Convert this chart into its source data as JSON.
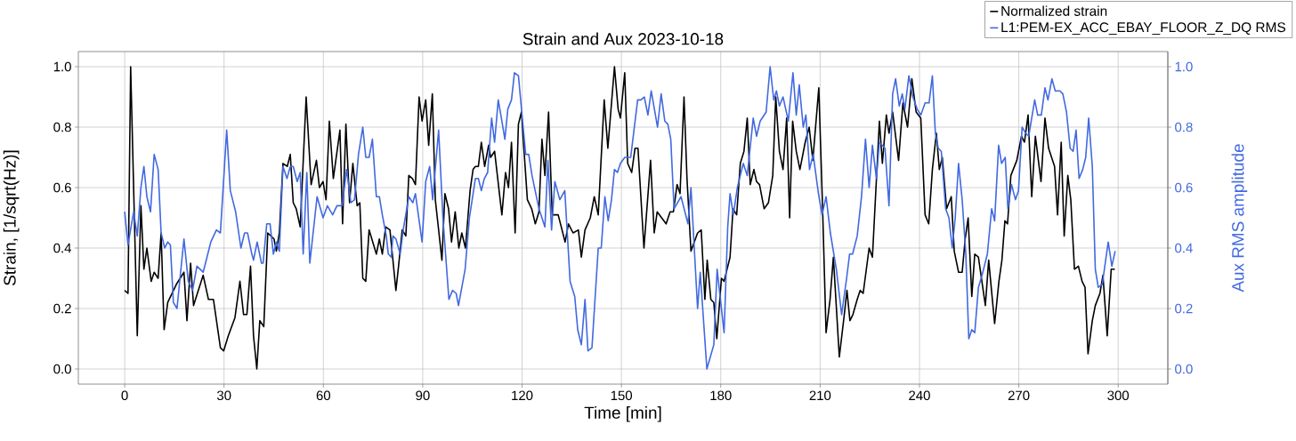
{
  "chart_data": {
    "type": "line",
    "title": "Strain and Aux 2023-10-18",
    "xlabel": "Time [min]",
    "ylabel": "Strain, [1/sqrt(Hz)]",
    "y2label": "Aux RMS amplitude",
    "xlim": [
      -14,
      315
    ],
    "xticks": [
      0,
      30,
      60,
      90,
      120,
      150,
      180,
      210,
      240,
      270,
      300
    ],
    "ylim": [
      -0.05,
      1.05
    ],
    "yticks": [
      {
        "value": 0,
        "label": "0.0"
      },
      {
        "value": 0.2,
        "label": "0.2"
      },
      {
        "value": 0.4,
        "label": "0.4"
      },
      {
        "value": 0.6,
        "label": "0.6"
      },
      {
        "value": 0.8,
        "label": "0.8"
      },
      {
        "value": 1,
        "label": "1.0"
      }
    ],
    "y2lim": [
      -0.05,
      1.05
    ],
    "y2ticks": [
      {
        "value": 0,
        "label": "0.0"
      },
      {
        "value": 0.2,
        "label": "0.2"
      },
      {
        "value": 0.4,
        "label": "0.4"
      },
      {
        "value": 0.6,
        "label": "0.6"
      },
      {
        "value": 0.8,
        "label": "0.8"
      },
      {
        "value": 1,
        "label": "1.0"
      }
    ],
    "grid": true,
    "legend": "top right",
    "series": [
      {
        "name": "Normalized strain",
        "color": "#000000",
        "x": [
          0,
          1,
          1.8,
          3.8,
          4.9,
          5.8,
          6.7,
          8.0,
          8.9,
          10.1,
          11.0,
          11.9,
          13.0,
          15.6,
          17.9,
          18.8,
          19.9,
          20.8,
          23.7,
          25.3,
          26.8,
          28.9,
          29.9,
          31.3,
          33.3,
          34.8,
          35.9,
          36.9,
          38.0,
          38.9,
          39.9,
          40.8,
          42.0,
          43.2,
          45.1,
          45.8,
          46.7,
          47.8,
          49.1,
          50.0,
          50.9,
          51.8,
          53.0,
          54.8,
          56.3,
          57.9,
          58.8,
          59.9,
          60.8,
          61.8,
          63.0,
          65.0,
          65.8,
          66.8,
          67.9,
          68.9,
          70.2,
          71.0,
          71.9,
          72.8,
          73.8,
          76.0,
          76.9,
          77.8,
          78.8,
          80.1,
          81.9,
          82.7,
          83.8,
          84.9,
          85.8,
          86.9,
          87.8,
          88.9,
          89.8,
          90.9,
          91.8,
          92.9,
          93.8,
          95.8,
          96.7,
          97.8,
          98.7,
          99.8,
          100.9,
          101.8,
          102.9,
          104.3,
          105.2,
          105.9,
          106.8,
          107.7,
          108.7,
          109.9,
          110.5,
          111.7,
          113.9,
          115.0,
          115.9,
          116.8,
          117.9,
          118.9,
          119.8,
          121.6,
          122.9,
          124.0,
          125.1,
          126.0,
          126.9,
          128.0,
          129.1,
          130.9,
          133.0,
          134.0,
          135.4,
          137.0,
          137.9,
          139.0,
          140.6,
          141.8,
          143.0,
          144.8,
          145.9,
          147.9,
          149.0,
          149.7,
          151.0,
          151.9,
          153.1,
          154.1,
          155.0,
          156.8,
          158.8,
          159.9,
          160.8,
          163.5,
          164.7,
          165.7,
          166.8,
          167.7,
          168.9,
          169.8,
          171.0,
          173.0,
          174.1,
          175.2,
          175.9,
          177.0,
          177.9,
          178.8,
          180.2,
          181.0,
          182.8,
          183.7,
          184.8,
          185.9,
          187.0,
          188.0,
          188.9,
          190.0,
          190.8,
          191.7,
          193.1,
          194.4,
          195.7,
          196.6,
          197.7,
          198.8,
          199.9,
          200.8,
          201.7,
          202.8,
          203.9,
          205.5,
          206.7,
          207.8,
          209.6,
          210.7,
          211.8,
          213.0,
          214.0,
          215.8,
          217.2,
          218.1,
          219.0,
          219.9,
          221.2,
          222.1,
          223.0,
          224.8,
          225.8,
          227.9,
          228.8,
          230.0,
          230.8,
          231.9,
          233.7,
          235.0,
          236.4,
          237.7,
          239.0,
          240.4,
          241.7,
          242.8,
          243.9,
          245.1,
          246.0,
          246.9,
          248.2,
          249.6,
          250.5,
          251.8,
          252.9,
          253.8,
          254.7,
          255.8,
          256.7,
          257.8,
          259.9,
          260.9,
          262.7,
          264.0,
          264.9,
          265.8,
          266.6,
          267.6,
          269.4,
          270.8,
          271.7,
          272.8,
          273.9,
          275.0,
          276.7,
          277.9,
          279.0,
          280.8,
          281.7,
          282.8,
          283.7,
          284.8,
          285.7,
          286.8,
          288.0,
          289.1,
          290.0,
          290.9,
          292.2,
          293.1,
          294.5,
          295.4,
          296.7,
          297.9,
          299.0
        ],
        "values": [
          0.26,
          0.25,
          1.0,
          0.11,
          0.54,
          0.33,
          0.4,
          0.29,
          0.32,
          0.3,
          0.45,
          0.13,
          0.22,
          0.28,
          0.32,
          0.16,
          0.35,
          0.21,
          0.31,
          0.23,
          0.23,
          0.07,
          0.06,
          0.11,
          0.17,
          0.29,
          0.18,
          0.18,
          0.34,
          0.11,
          0.0,
          0.16,
          0.14,
          0.45,
          0.43,
          0.39,
          0.45,
          0.68,
          0.67,
          0.71,
          0.55,
          0.53,
          0.47,
          0.9,
          0.61,
          0.69,
          0.6,
          0.62,
          0.56,
          0.82,
          0.63,
          0.79,
          0.48,
          0.81,
          0.55,
          0.68,
          0.54,
          0.55,
          0.3,
          0.29,
          0.46,
          0.38,
          0.43,
          0.38,
          0.47,
          0.46,
          0.26,
          0.34,
          0.46,
          0.44,
          0.64,
          0.63,
          0.61,
          0.9,
          0.82,
          0.89,
          0.74,
          0.91,
          0.56,
          0.36,
          0.58,
          0.53,
          0.42,
          0.52,
          0.4,
          0.45,
          0.4,
          0.59,
          0.66,
          0.67,
          0.67,
          0.75,
          0.67,
          0.74,
          0.7,
          0.72,
          0.51,
          0.65,
          0.6,
          0.75,
          0.45,
          0.81,
          0.85,
          0.56,
          0.53,
          0.48,
          0.52,
          0.76,
          0.64,
          0.85,
          0.51,
          0.51,
          0.42,
          0.48,
          0.45,
          0.46,
          0.37,
          0.46,
          0.5,
          0.57,
          0.51,
          0.89,
          0.73,
          1.0,
          0.86,
          0.83,
          0.98,
          0.68,
          0.65,
          0.73,
          0.73,
          0.4,
          0.69,
          0.45,
          0.52,
          0.48,
          0.52,
          0.52,
          0.61,
          0.58,
          0.9,
          0.63,
          0.39,
          0.45,
          0.46,
          0.23,
          0.36,
          0.23,
          0.22,
          0.1,
          0.3,
          0.29,
          0.37,
          0.53,
          0.51,
          0.68,
          0.72,
          0.83,
          0.61,
          0.66,
          0.62,
          0.61,
          0.53,
          0.55,
          0.64,
          0.9,
          0.72,
          0.66,
          0.83,
          0.5,
          0.82,
          0.72,
          0.66,
          0.75,
          0.8,
          0.69,
          0.93,
          0.55,
          0.12,
          0.23,
          0.37,
          0.04,
          0.17,
          0.26,
          0.16,
          0.18,
          0.23,
          0.26,
          0.25,
          0.4,
          0.37,
          0.82,
          0.68,
          0.84,
          0.78,
          0.85,
          0.69,
          0.88,
          0.8,
          0.96,
          0.85,
          0.83,
          0.51,
          0.48,
          0.66,
          0.78,
          0.66,
          0.7,
          0.53,
          0.57,
          0.39,
          0.32,
          0.32,
          0.43,
          0.5,
          0.24,
          0.38,
          0.37,
          0.21,
          0.36,
          0.15,
          0.29,
          0.36,
          0.49,
          0.48,
          0.64,
          0.69,
          0.77,
          0.75,
          0.84,
          0.57,
          0.77,
          0.62,
          0.83,
          0.73,
          0.67,
          0.51,
          0.75,
          0.44,
          0.64,
          0.56,
          0.33,
          0.34,
          0.29,
          0.27,
          0.05,
          0.16,
          0.21,
          0.25,
          0.31,
          0.11,
          0.33,
          0.33
        ]
      },
      {
        "name": "L1:PEM-EX_ACC_EBAY_FLOOR_Z_DQ RMS",
        "color": "#4169e1",
        "axis": "y2",
        "x": [
          0,
          1.0,
          2.7,
          3.8,
          4.9,
          5.8,
          6.7,
          7.8,
          8.9,
          10.1,
          11.0,
          12.1,
          13.0,
          13.8,
          14.7,
          15.8,
          16.7,
          17.9,
          19.2,
          20.5,
          21.8,
          23.7,
          26.0,
          27.7,
          28.9,
          30.8,
          31.9,
          33.5,
          35.1,
          36.2,
          37.1,
          38.4,
          38.9,
          40.0,
          41.3,
          41.8,
          42.9,
          43.9,
          44.9,
          45.8,
          46.7,
          47.8,
          49.0,
          50.0,
          50.9,
          52.1,
          53.0,
          53.9,
          55.0,
          55.9,
          58.1,
          59.9,
          61.2,
          62.8,
          64.1,
          65.7,
          67.0,
          68.3,
          69.4,
          70.6,
          71.9,
          72.8,
          73.8,
          74.8,
          76.0,
          76.9,
          77.8,
          79.0,
          79.6,
          80.5,
          81.0,
          81.9,
          83.2,
          84.1,
          85.8,
          87.0,
          87.8,
          89.8,
          90.9,
          92.1,
          93.0,
          94.8,
          96.1,
          97.9,
          99.0,
          100.1,
          100.8,
          102.8,
          104.1,
          105.9,
          106.8,
          107.7,
          108.6,
          109.6,
          110.8,
          111.7,
          112.8,
          113.9,
          114.8,
          115.7,
          116.8,
          117.7,
          118.9,
          119.9,
          121.1,
          122.0,
          123.0,
          125.1,
          126.9,
          127.8,
          128.9,
          129.9,
          131.4,
          132.9,
          134.5,
          135.9,
          136.8,
          137.9,
          139.0,
          139.9,
          141.1,
          143.0,
          143.9,
          145.0,
          146.0,
          147.0,
          147.9,
          148.8,
          149.7,
          151.0,
          152.8,
          154.9,
          155.9,
          156.9,
          158.0,
          159.0,
          160.9,
          162.0,
          163.1,
          164.0,
          164.9,
          165.9,
          168.0,
          170.1,
          171.0,
          173.0,
          173.8,
          175.8,
          177.9,
          178.9,
          181.0,
          182.1,
          182.8,
          183.8,
          185.0,
          186.8,
          188.0,
          189.8,
          190.8,
          191.9,
          193.7,
          194.9,
          196.0,
          196.8,
          197.7,
          198.8,
          200.4,
          201.8,
          202.8,
          203.7,
          204.9,
          205.7,
          206.8,
          207.9,
          209.5,
          210.6,
          211.8,
          213.1,
          214.9,
          216.5,
          218.0,
          218.9,
          219.8,
          221.2,
          222.5,
          223.7,
          224.8,
          225.8,
          227.0,
          227.9,
          229.6,
          230.8,
          231.9,
          232.8,
          233.9,
          234.8,
          235.6,
          236.8,
          238.0,
          239.3,
          240.4,
          241.7,
          242.9,
          243.9,
          244.8,
          245.7,
          246.6,
          247.9,
          248.9,
          249.9,
          250.8,
          251.8,
          252.9,
          254.0,
          254.9,
          255.8,
          256.7,
          257.8,
          258.9,
          260.5,
          261.8,
          262.7,
          263.9,
          264.8,
          265.9,
          266.7,
          267.8,
          269.0,
          269.9,
          271.0,
          272.1,
          273.0,
          274.8,
          275.7,
          276.8,
          277.9,
          278.8,
          280.0,
          281.0,
          282.4,
          283.3,
          284.4,
          285.5,
          286.4,
          287.3,
          288.2,
          289.3,
          290.2,
          291.1,
          292.2,
          293.1,
          294.0,
          295.2,
          297.0,
          298.1,
          299.1
        ],
        "values": [
          0.52,
          0.41,
          0.52,
          0.44,
          0.6,
          0.67,
          0.57,
          0.52,
          0.71,
          0.66,
          0.45,
          0.4,
          0.42,
          0.41,
          0.22,
          0.2,
          0.3,
          0.43,
          0.29,
          0.26,
          0.34,
          0.32,
          0.42,
          0.46,
          0.45,
          0.79,
          0.59,
          0.52,
          0.4,
          0.45,
          0.45,
          0.38,
          0.36,
          0.42,
          0.35,
          0.35,
          0.48,
          0.48,
          0.38,
          0.42,
          0.39,
          0.67,
          0.63,
          0.67,
          0.67,
          0.62,
          0.65,
          0.38,
          0.65,
          0.35,
          0.57,
          0.5,
          0.54,
          0.51,
          0.54,
          0.54,
          0.66,
          0.55,
          0.56,
          0.71,
          0.8,
          0.7,
          0.7,
          0.76,
          0.57,
          0.57,
          0.51,
          0.44,
          0.38,
          0.37,
          0.44,
          0.43,
          0.38,
          0.46,
          0.57,
          0.55,
          0.58,
          0.42,
          0.62,
          0.67,
          0.56,
          0.79,
          0.5,
          0.23,
          0.26,
          0.25,
          0.21,
          0.33,
          0.5,
          0.63,
          0.63,
          0.59,
          0.63,
          0.65,
          0.83,
          0.75,
          0.89,
          0.82,
          0.76,
          0.86,
          0.89,
          0.98,
          0.97,
          0.85,
          0.71,
          0.71,
          0.64,
          0.53,
          0.47,
          0.69,
          0.46,
          0.62,
          0.56,
          0.59,
          0.29,
          0.24,
          0.13,
          0.08,
          0.23,
          0.06,
          0.07,
          0.4,
          0.4,
          0.57,
          0.49,
          0.56,
          0.66,
          0.65,
          0.68,
          0.7,
          0.7,
          0.89,
          0.89,
          0.9,
          0.84,
          0.92,
          0.8,
          0.91,
          0.82,
          0.81,
          0.76,
          0.53,
          0.57,
          0.48,
          0.6,
          0.2,
          0.32,
          0.0,
          0.08,
          0.33,
          0.12,
          0.47,
          0.58,
          0.51,
          0.6,
          0.68,
          0.64,
          0.83,
          0.77,
          0.82,
          0.85,
          1.0,
          0.89,
          0.92,
          0.87,
          0.9,
          0.82,
          0.98,
          0.84,
          0.94,
          0.8,
          0.84,
          0.66,
          0.71,
          0.58,
          0.51,
          0.57,
          0.45,
          0.33,
          0.18,
          0.3,
          0.38,
          0.38,
          0.44,
          0.57,
          0.76,
          0.6,
          0.74,
          0.63,
          0.75,
          0.73,
          0.54,
          0.91,
          0.96,
          0.87,
          0.91,
          0.86,
          0.97,
          0.9,
          0.86,
          0.84,
          0.88,
          0.88,
          0.97,
          0.78,
          0.73,
          0.72,
          0.53,
          0.5,
          0.4,
          0.5,
          0.68,
          0.56,
          0.38,
          0.1,
          0.13,
          0.12,
          0.27,
          0.31,
          0.38,
          0.53,
          0.49,
          0.74,
          0.68,
          0.7,
          0.53,
          0.61,
          0.56,
          0.59,
          0.8,
          0.78,
          0.77,
          0.89,
          0.84,
          0.84,
          0.93,
          0.89,
          0.96,
          0.92,
          0.92,
          0.91,
          0.85,
          0.73,
          0.72,
          0.79,
          0.63,
          0.66,
          0.7,
          0.83,
          0.67,
          0.33,
          0.27,
          0.28,
          0.42,
          0.34,
          0.39
        ]
      }
    ]
  }
}
